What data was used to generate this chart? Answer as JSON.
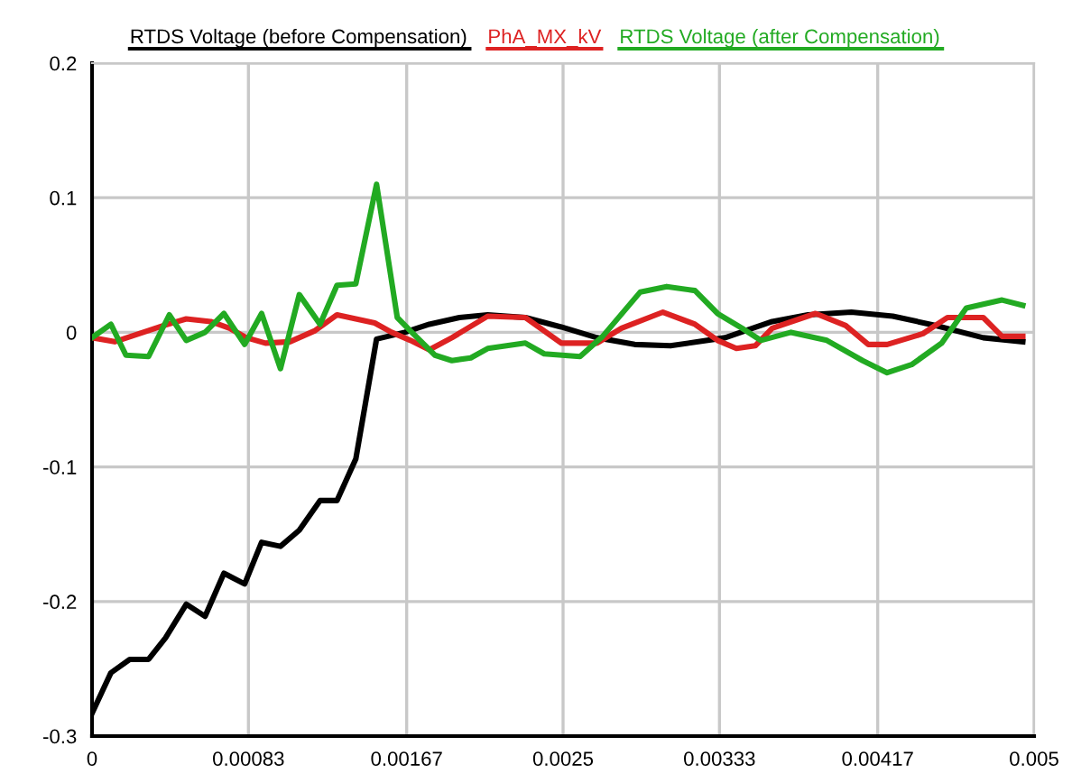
{
  "chart_data": {
    "type": "line",
    "xlim": [
      0,
      0.005
    ],
    "ylim": [
      -0.3,
      0.2
    ],
    "xticks": [
      0,
      0.00083,
      0.00167,
      0.0025,
      0.00333,
      0.00417,
      0.005
    ],
    "yticks": [
      -0.3,
      -0.2,
      -0.1,
      0,
      0.1,
      0.2
    ],
    "grid": true,
    "legend": "top",
    "marker": "none",
    "line_style": "solid",
    "series": [
      {
        "name": "RTDS Voltage (before Compensation)",
        "color": "#000000",
        "x": [
          0,
          0.0001,
          0.0002,
          0.0003,
          0.00039,
          0.0005,
          0.0006,
          0.0007,
          0.00081,
          0.0009,
          0.001,
          0.0011,
          0.00121,
          0.0013,
          0.0014,
          0.00151,
          0.00166,
          0.00179,
          0.00195,
          0.0021,
          0.0023,
          0.00249,
          0.00268,
          0.00288,
          0.00307,
          0.00336,
          0.00361,
          0.0038,
          0.00403,
          0.00425,
          0.00448,
          0.00473,
          0.00494
        ],
        "values": [
          -0.283,
          -0.253,
          -0.243,
          -0.243,
          -0.227,
          -0.202,
          -0.211,
          -0.179,
          -0.187,
          -0.156,
          -0.159,
          -0.147,
          -0.125,
          -0.125,
          -0.094,
          -0.005,
          0.0,
          0.006,
          0.011,
          0.013,
          0.011,
          0.004,
          -0.004,
          -0.009,
          -0.01,
          -0.004,
          0.008,
          0.013,
          0.015,
          0.012,
          0.005,
          -0.004,
          -0.007
        ]
      },
      {
        "name": "PhA_MX_kV",
        "color": "#dd2222",
        "x": [
          0,
          0.00012,
          0.00025,
          0.00038,
          0.0005,
          0.00063,
          0.00073,
          0.00082,
          0.00092,
          0.00105,
          0.00118,
          0.0013,
          0.0014,
          0.0015,
          0.00159,
          0.00169,
          0.00179,
          0.00191,
          0.0021,
          0.0023,
          0.00249,
          0.00268,
          0.00281,
          0.00303,
          0.0032,
          0.00332,
          0.00342,
          0.00352,
          0.00361,
          0.00384,
          0.004,
          0.00412,
          0.00422,
          0.00441,
          0.00454,
          0.00473,
          0.00483,
          0.00494
        ],
        "values": [
          -0.004,
          -0.007,
          -0.001,
          0.005,
          0.01,
          0.008,
          0.003,
          -0.004,
          -0.008,
          -0.007,
          0.001,
          0.013,
          0.01,
          0.007,
          0.0,
          -0.006,
          -0.013,
          -0.004,
          0.012,
          0.011,
          -0.008,
          -0.008,
          0.003,
          0.015,
          0.006,
          -0.006,
          -0.012,
          -0.01,
          0.003,
          0.014,
          0.005,
          -0.009,
          -0.009,
          -0.001,
          0.011,
          0.011,
          -0.003,
          -0.003
        ]
      },
      {
        "name": "RTDS Voltage (after Compensation)",
        "color": "#22aa22",
        "x": [
          0,
          0.0001,
          0.00018,
          0.0003,
          0.00041,
          0.0005,
          0.0006,
          0.0007,
          0.00081,
          0.0009,
          0.001,
          0.0011,
          0.00121,
          0.0013,
          0.0014,
          0.00151,
          0.00162,
          0.00169,
          0.00182,
          0.00191,
          0.00201,
          0.0021,
          0.0023,
          0.0024,
          0.00259,
          0.00271,
          0.00291,
          0.00305,
          0.0032,
          0.00332,
          0.00345,
          0.00355,
          0.00371,
          0.0039,
          0.00409,
          0.00422,
          0.00435,
          0.00451,
          0.00464,
          0.00483,
          0.00494
        ],
        "values": [
          -0.004,
          0.006,
          -0.017,
          -0.018,
          0.013,
          -0.006,
          0.0,
          0.014,
          -0.009,
          0.014,
          -0.027,
          0.028,
          0.006,
          0.035,
          0.036,
          0.11,
          0.011,
          0.001,
          -0.017,
          -0.021,
          -0.019,
          -0.012,
          -0.008,
          -0.016,
          -0.018,
          -0.003,
          0.03,
          0.034,
          0.031,
          0.014,
          0.003,
          -0.006,
          0.0,
          -0.006,
          -0.021,
          -0.03,
          -0.024,
          -0.008,
          0.018,
          0.024,
          0.02
        ]
      }
    ]
  }
}
